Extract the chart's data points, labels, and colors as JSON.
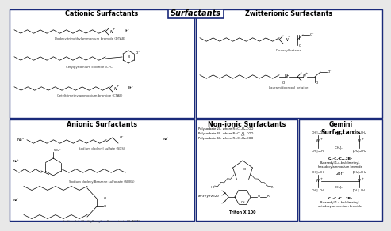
{
  "title": "Surfactants",
  "bg_color": "#e8e8e8",
  "panel_bg": "#ffffff",
  "border_color": "#1a2a7a",
  "title_fontsize": 7,
  "header_fontsize": 5.5,
  "panels": {
    "cationic": {
      "title": "Cationic Surfactants"
    },
    "zwitterionic": {
      "title": "Zwitterionic Surfactants"
    },
    "anionic": {
      "title": "Anionic Surfactants"
    },
    "nonionic": {
      "title": "Non-ionic Surfactants"
    },
    "gemini": {
      "title": "Gemini\nSurfactants"
    }
  },
  "cationic_labels": [
    "Dodecyltrimethylammonium bromide (DTAB)",
    "Cetylpyridinium chloride (CPC)",
    "Cetyltrimethylammonium bromide (CTAB)"
  ],
  "zwitterionic_labels": [
    "Dodecyl betaine",
    "Lauramidopropyl betaine"
  ],
  "anionic_labels": [
    "Sodium dodecyl sulfate (SDS)",
    "Sodium dodecylBenzene sulfonate (SDBS)",
    "Sodium bis (2-ethylhexyl) sulfosuccinate (NaAOT)"
  ],
  "nonionic_labels": [
    "Polysorbate 20, where R=C₁₁H₂₃COO",
    "Polysorbate 40, where R=C₁₅H₃₁COO",
    "Polysorbate 60, where R=C₁₇H₃₅COO",
    "w+x+y+z=20",
    "Triton X 100"
  ],
  "gemini_labels": [
    "1Br⁻",
    "C₁₆-C₄-C₁₆.2Br",
    "Butanedyl-1,4-bis(dimethyl-",
    "hexadecylammonium bromide",
    "2Br⁻",
    "C₁₆-C₄-C₁₈.2Br",
    "Butanedyl-1,4-bis(dimethyl-",
    "octadecylammonium bromide"
  ]
}
